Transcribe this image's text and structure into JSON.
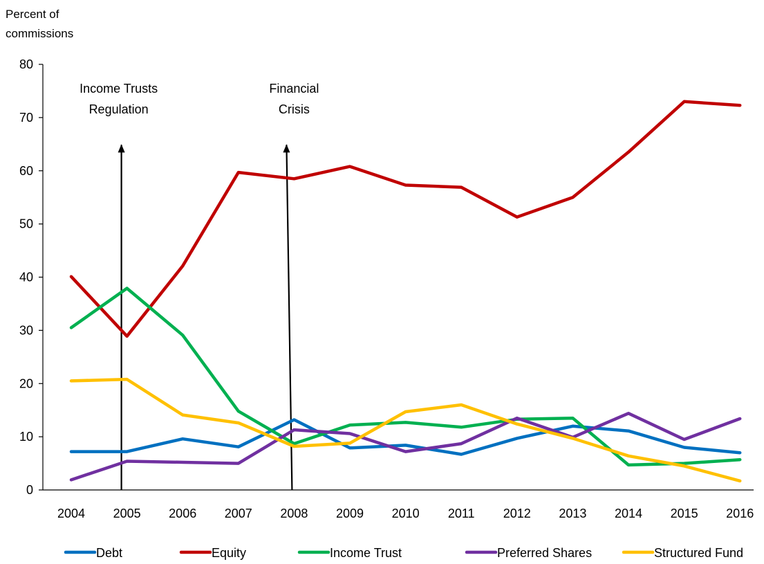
{
  "chart_data": {
    "type": "line",
    "title": "",
    "xlabel": "",
    "ylabel_lines": [
      "Percent of",
      "commissions"
    ],
    "ylim": [
      0,
      80
    ],
    "yticks": [
      0,
      10,
      20,
      30,
      40,
      50,
      60,
      70,
      80
    ],
    "x": [
      "2004",
      "2005",
      "2006",
      "2007",
      "2008",
      "2009",
      "2010",
      "2011",
      "2012",
      "2013",
      "2014",
      "2015",
      "2016"
    ],
    "grid": false,
    "legend_position": "bottom",
    "series": [
      {
        "name": "Debt",
        "color": "#0070c0",
        "values": [
          7.2,
          7.2,
          9.6,
          8.1,
          13.2,
          7.9,
          8.4,
          6.7,
          9.7,
          12.0,
          11.1,
          8.0,
          7.0
        ]
      },
      {
        "name": "Equity",
        "color": "#c00000",
        "values": [
          40.1,
          28.9,
          42.1,
          59.7,
          58.5,
          60.8,
          57.3,
          56.9,
          51.3,
          55.0,
          63.5,
          73.0,
          72.3
        ]
      },
      {
        "name": "Income Trust",
        "color": "#00b050",
        "values": [
          30.5,
          37.9,
          29.1,
          14.8,
          8.7,
          12.2,
          12.7,
          11.8,
          13.3,
          13.5,
          4.7,
          5.0,
          5.7
        ]
      },
      {
        "name": "Preferred Shares",
        "color": "#7030a0",
        "values": [
          1.9,
          5.4,
          5.2,
          5.0,
          11.3,
          10.6,
          7.2,
          8.7,
          13.5,
          9.9,
          14.4,
          9.5,
          13.4
        ]
      },
      {
        "name": "Structured Fund",
        "color": "#ffc000",
        "values": [
          20.5,
          20.8,
          14.1,
          12.6,
          8.2,
          8.8,
          14.7,
          16.0,
          12.4,
          9.7,
          6.4,
          4.5,
          1.7
        ]
      }
    ],
    "annotations": [
      {
        "lines": [
          "Income Trusts",
          "Regulation"
        ],
        "x": "2005",
        "arrow_tip": 65,
        "arrow_base_y": 0
      },
      {
        "lines": [
          "Financial",
          "Crisis"
        ],
        "x": "2008",
        "arrow_tip": 65,
        "arrow_base_y": 0
      }
    ]
  }
}
